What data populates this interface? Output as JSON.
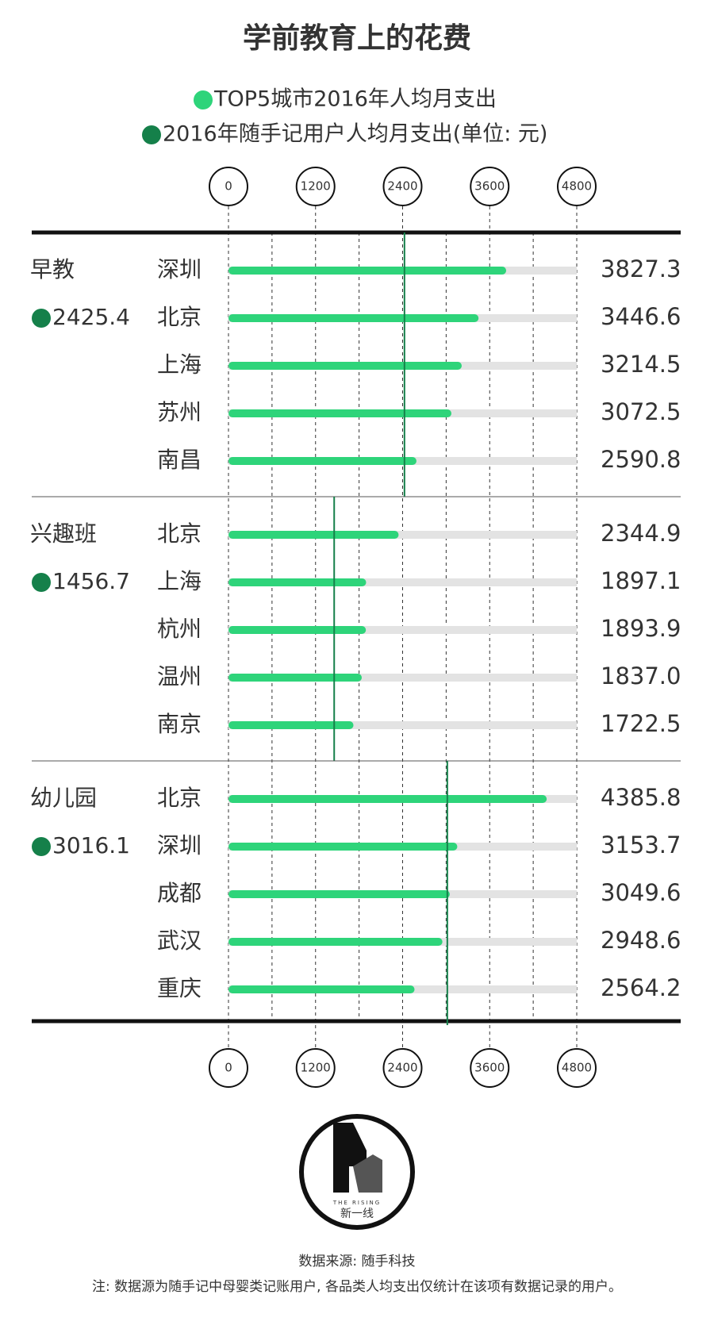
{
  "chart_data": {
    "type": "bar",
    "title": "学前教育上的花费",
    "legend": [
      {
        "name": "TOP5城市2016年人均月支出",
        "color": "#2ed47a"
      },
      {
        "name": "2016年随手记用户人均月支出(单位: 元)",
        "color": "#15804a"
      }
    ],
    "xlim": [
      0,
      4800
    ],
    "xticks": [
      0,
      1200,
      2400,
      3600,
      4800
    ],
    "groups": [
      {
        "name": "早教",
        "average": 2425.4,
        "categories": [
          "深圳",
          "北京",
          "上海",
          "苏州",
          "南昌"
        ],
        "values": [
          3827.3,
          3446.6,
          3214.5,
          3072.5,
          2590.8
        ]
      },
      {
        "name": "兴趣班",
        "average": 1456.7,
        "categories": [
          "北京",
          "上海",
          "杭州",
          "温州",
          "南京"
        ],
        "values": [
          2344.9,
          1897.1,
          1893.9,
          1837.0,
          1722.5
        ],
        "value_labels": [
          "2344.9",
          "1897.1",
          "1893.9",
          "1837.0",
          "1722.5"
        ]
      },
      {
        "name": "幼儿园",
        "average": 3016.1,
        "categories": [
          "北京",
          "深圳",
          "成都",
          "武汉",
          "重庆"
        ],
        "values": [
          4385.8,
          3153.7,
          3049.6,
          2948.6,
          2564.2
        ]
      }
    ],
    "logo": {
      "brand": "THE RISING",
      "name": "新一线"
    },
    "source": "数据来源: 随手科技",
    "note": "注: 数据源为随手记中母婴类记账用户, 各品类人均支出仅统计在该项有数据记录的用户。"
  }
}
